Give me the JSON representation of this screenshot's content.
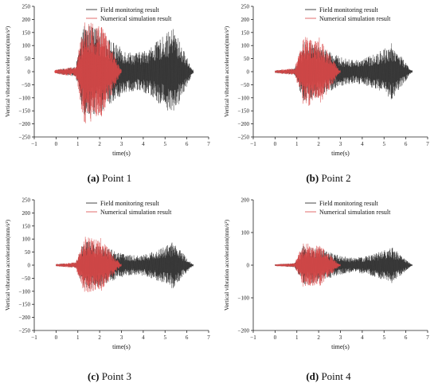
{
  "colors": {
    "field": "#1a1a1a",
    "simulation": "#d94848",
    "axis": "#222222"
  },
  "chart_data": [
    {
      "type": "line",
      "caption_letter": "(a)",
      "caption_text": " Point 1",
      "xlabel": "time(s)",
      "ylabel": "Vertical vibration acceleration(mm/s²)",
      "xlim": [
        -1,
        7
      ],
      "ylim": [
        -250,
        250
      ],
      "xticks": [
        "−1",
        "0",
        "1",
        "2",
        "3",
        "4",
        "5",
        "6",
        "7"
      ],
      "yticks": [
        "250",
        "200",
        "150",
        "100",
        "50",
        "0",
        "−50",
        "−100",
        "−150",
        "−200",
        "−250"
      ],
      "legend_position": "top-right",
      "series": [
        {
          "name": "Field monitoring result",
          "x_range": [
            0,
            6.3
          ],
          "peak_amplitude": 185
        },
        {
          "name": "Numerical simulation result",
          "x_range": [
            0,
            3.0
          ],
          "peak_amplitude": 200
        }
      ]
    },
    {
      "type": "line",
      "caption_letter": "(b)",
      "caption_text": " Point 2",
      "xlabel": "time(s)",
      "ylabel": "Vertical vibration acceleration(mm/s²)",
      "xlim": [
        -1,
        7
      ],
      "ylim": [
        -250,
        250
      ],
      "xticks": [
        "−1",
        "0",
        "1",
        "2",
        "3",
        "4",
        "5",
        "6",
        "7"
      ],
      "yticks": [
        "250",
        "200",
        "150",
        "100",
        "50",
        "0",
        "−50",
        "−100",
        "−150",
        "−200",
        "−250"
      ],
      "legend_position": "top-right",
      "series": [
        {
          "name": "Field monitoring result",
          "x_range": [
            0,
            6.3
          ],
          "peak_amplitude": 115
        },
        {
          "name": "Numerical simulation result",
          "x_range": [
            0,
            3.0
          ],
          "peak_amplitude": 135
        }
      ]
    },
    {
      "type": "line",
      "caption_letter": "(c)",
      "caption_text": " Point 3",
      "xlabel": "time(s)",
      "ylabel": "Vertical vibration acceleration(mm/s²)",
      "xlim": [
        -1,
        7
      ],
      "ylim": [
        -250,
        250
      ],
      "xticks": [
        "−1",
        "0",
        "1",
        "2",
        "3",
        "4",
        "5",
        "6",
        "7"
      ],
      "yticks": [
        "250",
        "200",
        "150",
        "100",
        "50",
        "0",
        "−50",
        "−100",
        "−150",
        "−200",
        "−250"
      ],
      "legend_position": "top-right",
      "series": [
        {
          "name": "Field monitoring result",
          "x_range": [
            0,
            6.3
          ],
          "peak_amplitude": 95
        },
        {
          "name": "Numerical simulation result",
          "x_range": [
            0,
            3.0
          ],
          "peak_amplitude": 110
        }
      ]
    },
    {
      "type": "line",
      "caption_letter": "(d)",
      "caption_text": " Point 4",
      "xlabel": "time(s)",
      "ylabel": "Vertical vibration acceleration(mm/s²)",
      "xlim": [
        -1,
        7
      ],
      "ylim": [
        -250,
        250
      ],
      "xticks": [
        "−1",
        "0",
        "1",
        "2",
        "3",
        "4",
        "5",
        "6",
        "7"
      ],
      "yticks": [
        "200",
        "100",
        "0",
        "−100",
        "−200"
      ],
      "legend_position": "top-right",
      "series": [
        {
          "name": "Field monitoring result",
          "x_range": [
            0,
            6.3
          ],
          "peak_amplitude": 75
        },
        {
          "name": "Numerical simulation result",
          "x_range": [
            0,
            3.0
          ],
          "peak_amplitude": 85
        }
      ]
    }
  ]
}
